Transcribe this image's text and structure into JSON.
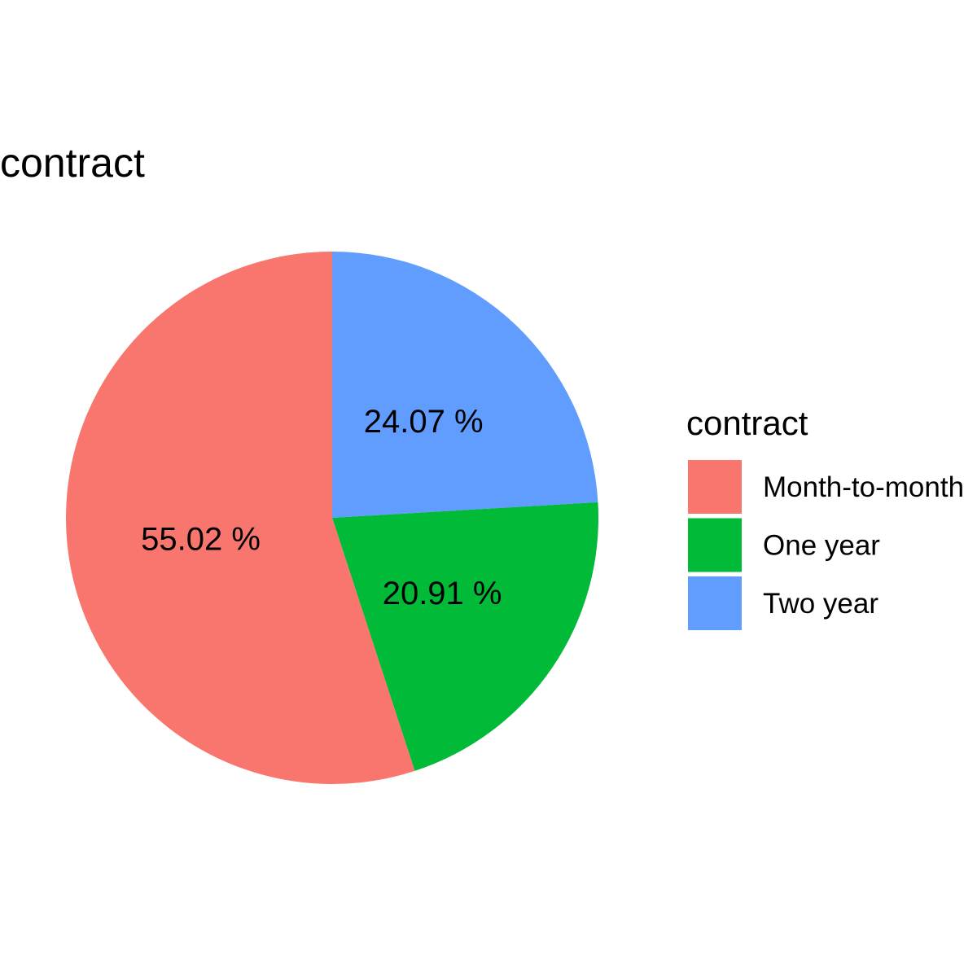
{
  "chart_data": {
    "type": "pie",
    "title": "contract",
    "categories": [
      "Month-to-month",
      "One year",
      "Two year"
    ],
    "values": [
      55.02,
      20.91,
      24.07
    ],
    "labels": [
      "55.02 %",
      "20.91 %",
      "24.07 %"
    ],
    "colors": [
      "#F8766D",
      "#00BA38",
      "#619CFF"
    ],
    "legend": {
      "title": "contract",
      "position": "right"
    }
  }
}
